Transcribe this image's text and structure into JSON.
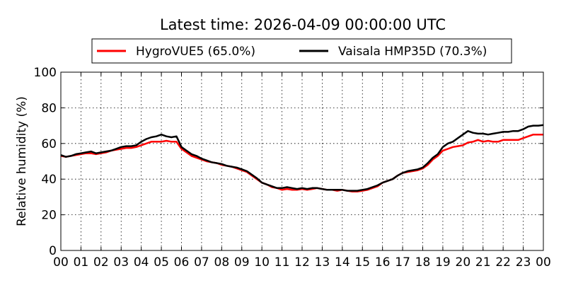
{
  "chart_data": {
    "type": "line",
    "title": "Latest time: 2026-04-09 00:00:00 UTC",
    "xlabel": "",
    "ylabel": "Relative humidity (%)",
    "xlim": [
      0,
      24
    ],
    "ylim": [
      0,
      100
    ],
    "xtick_labels": [
      "00",
      "01",
      "02",
      "03",
      "04",
      "05",
      "06",
      "07",
      "08",
      "09",
      "10",
      "11",
      "12",
      "13",
      "14",
      "15",
      "16",
      "17",
      "18",
      "19",
      "20",
      "21",
      "22",
      "23",
      "00"
    ],
    "ytick_values": [
      0,
      20,
      40,
      60,
      80,
      100
    ],
    "ytick_labels": [
      "0",
      "20",
      "40",
      "60",
      "80",
      "100"
    ],
    "grid": true,
    "legend_position": "top",
    "series": [
      {
        "name": "HygroVUE5 (65.0%)",
        "color": "#ff0000",
        "x": [
          0,
          0.25,
          0.5,
          0.75,
          1,
          1.25,
          1.5,
          1.75,
          2,
          2.25,
          2.5,
          2.75,
          3,
          3.25,
          3.5,
          3.75,
          4,
          4.25,
          4.5,
          4.75,
          5,
          5.25,
          5.5,
          5.75,
          6,
          6.25,
          6.5,
          6.75,
          7,
          7.25,
          7.5,
          7.75,
          8,
          8.25,
          8.5,
          8.75,
          9,
          9.25,
          9.5,
          9.75,
          10,
          10.25,
          10.5,
          10.75,
          11,
          11.25,
          11.5,
          11.75,
          12,
          12.25,
          12.5,
          12.75,
          13,
          13.25,
          13.5,
          13.75,
          14,
          14.25,
          14.5,
          14.75,
          15,
          15.25,
          15.5,
          15.75,
          16,
          16.25,
          16.5,
          16.75,
          17,
          17.25,
          17.5,
          17.75,
          18,
          18.25,
          18.5,
          18.75,
          19,
          19.25,
          19.5,
          19.75,
          20,
          20.25,
          20.5,
          20.75,
          21,
          21.25,
          21.5,
          21.75,
          22,
          22.25,
          22.5,
          22.75,
          23,
          23.25,
          23.5,
          23.75,
          24
        ],
        "values": [
          53,
          52.5,
          53,
          53.5,
          54,
          54.5,
          54.5,
          54,
          54.5,
          55,
          56,
          56.5,
          57,
          57.5,
          57.5,
          58,
          59,
          60,
          61,
          61,
          61,
          61.5,
          61,
          61,
          57,
          55,
          53,
          52,
          51,
          50,
          49.5,
          49,
          48,
          47.5,
          47,
          46,
          45,
          44,
          42,
          40,
          38,
          37,
          35.5,
          35,
          34,
          34.5,
          34,
          34,
          34.5,
          34,
          34.5,
          35,
          34.5,
          34,
          34,
          33.5,
          34,
          33.5,
          33,
          33,
          33.5,
          34,
          35,
          36,
          38,
          39,
          40,
          42,
          43.5,
          44,
          44.5,
          45,
          46,
          48,
          51,
          53,
          56,
          57,
          58,
          58.5,
          59,
          60.5,
          61,
          62,
          61,
          61.5,
          61,
          61,
          62,
          62,
          62,
          62,
          63,
          64,
          65,
          65,
          65
        ]
      },
      {
        "name": "Vaisala HMP35D (70.3%)",
        "color": "#000000",
        "x": [
          0,
          0.25,
          0.5,
          0.75,
          1,
          1.25,
          1.5,
          1.75,
          2,
          2.25,
          2.5,
          2.75,
          3,
          3.25,
          3.5,
          3.75,
          4,
          4.25,
          4.5,
          4.75,
          5,
          5.25,
          5.5,
          5.75,
          6,
          6.25,
          6.5,
          6.75,
          7,
          7.25,
          7.5,
          7.75,
          8,
          8.25,
          8.5,
          8.75,
          9,
          9.25,
          9.5,
          9.75,
          10,
          10.25,
          10.5,
          10.75,
          11,
          11.25,
          11.5,
          11.75,
          12,
          12.25,
          12.5,
          12.75,
          13,
          13.25,
          13.5,
          13.75,
          14,
          14.25,
          14.5,
          14.75,
          15,
          15.25,
          15.5,
          15.75,
          16,
          16.25,
          16.5,
          16.75,
          17,
          17.25,
          17.5,
          17.75,
          18,
          18.25,
          18.5,
          18.75,
          19,
          19.25,
          19.5,
          19.75,
          20,
          20.25,
          20.5,
          20.75,
          21,
          21.25,
          21.5,
          21.75,
          22,
          22.25,
          22.5,
          22.75,
          23,
          23.25,
          23.5,
          23.75,
          24
        ],
        "values": [
          53.5,
          52.5,
          53,
          54,
          54.5,
          55,
          55.5,
          54.5,
          55,
          55.5,
          56,
          57,
          58,
          58.5,
          58.5,
          59,
          61,
          62.5,
          63.5,
          64,
          65,
          64,
          63.5,
          64,
          58,
          56,
          54,
          53,
          51.5,
          50.5,
          49.5,
          49,
          48.5,
          47.5,
          47,
          46.5,
          45.5,
          44.5,
          42.5,
          40.5,
          38,
          37,
          36,
          35,
          35,
          35.5,
          35,
          34.5,
          35,
          34.5,
          35,
          35,
          34.5,
          34,
          34,
          34,
          34,
          33.5,
          33.5,
          33.5,
          34,
          34.5,
          35.5,
          36.5,
          38,
          39,
          40,
          42,
          43.5,
          44.5,
          45,
          45.5,
          46.5,
          49,
          52,
          54,
          58,
          60,
          61,
          63,
          65,
          67,
          66,
          65.5,
          65.5,
          65,
          65.5,
          66,
          66.5,
          66.5,
          67,
          67,
          68,
          69.5,
          70,
          70,
          70.3
        ]
      }
    ]
  }
}
